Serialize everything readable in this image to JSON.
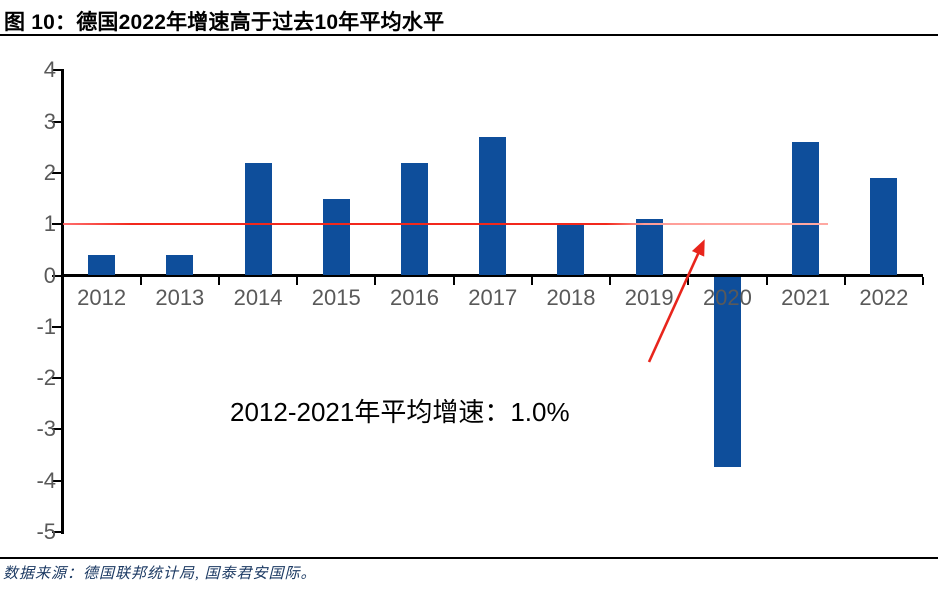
{
  "header": {
    "title": "图 10：德国2022年增速高于过去10年平均水平"
  },
  "chart_data": {
    "type": "bar",
    "title": "德国2022年增速高于过去10年平均水平",
    "categories": [
      "2012",
      "2013",
      "2014",
      "2015",
      "2016",
      "2017",
      "2018",
      "2019",
      "2020",
      "2021",
      "2022"
    ],
    "values": [
      0.4,
      0.4,
      2.2,
      1.5,
      2.2,
      2.7,
      1.0,
      1.1,
      -3.7,
      2.6,
      1.9
    ],
    "xlabel": "",
    "ylabel": "",
    "ylim": [
      -5,
      4
    ],
    "y_ticks": [
      4,
      3,
      2,
      1,
      0,
      -1,
      -2,
      -3,
      -4,
      -5
    ],
    "grid": false,
    "legend": false,
    "reference_line": {
      "value": 1.0,
      "color": "#f2281c"
    },
    "annotation": "2012-2021年平均增速：1.0%",
    "colors": {
      "bar": "#0e4e9b",
      "axis": "#000000",
      "tick_label": "#595959",
      "reference": "#f2281c"
    }
  },
  "footer": {
    "source": "数据来源：德国联邦统计局, 国泰君安国际。"
  }
}
